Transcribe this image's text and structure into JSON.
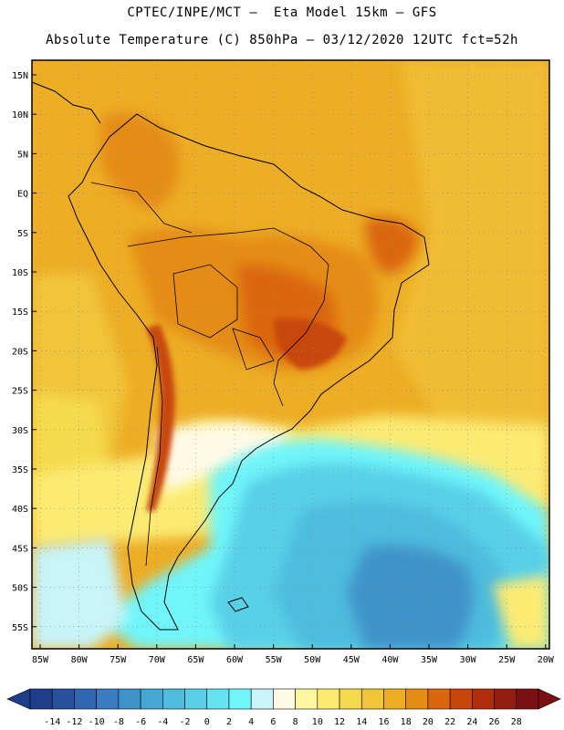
{
  "header": {
    "line1": "CPTEC/INPE/MCT –  Eta Model 15km – GFS",
    "line2": "Absolute Temperature (C) 850hPa – 03/12/2020 12UTC fct=52h"
  },
  "map": {
    "lat_ticks": [
      "15N",
      "10N",
      "5N",
      "EQ",
      "5S",
      "10S",
      "15S",
      "20S",
      "25S",
      "30S",
      "35S",
      "40S",
      "45S",
      "50S",
      "55S"
    ],
    "lon_ticks": [
      "85W",
      "80W",
      "75W",
      "70W",
      "65W",
      "60W",
      "55W",
      "50W",
      "45W",
      "40W",
      "35W",
      "30W",
      "25W",
      "20W"
    ]
  },
  "colorbar": {
    "labels": [
      "-14",
      "-12",
      "-10",
      "-8",
      "-6",
      "-4",
      "-2",
      "0",
      "2",
      "4",
      "6",
      "8",
      "10",
      "12",
      "14",
      "16",
      "18",
      "20",
      "22",
      "24",
      "26",
      "28"
    ],
    "colors": [
      "#1e3d8a",
      "#27519d",
      "#2f66b0",
      "#3a7cc0",
      "#3f93c9",
      "#44a8d2",
      "#4dbcdd",
      "#59d0e8",
      "#66e2f0",
      "#70f5fa",
      "#c8f4fa",
      "#fffae6",
      "#fff7a0",
      "#fbeb73",
      "#f6da4e",
      "#f1c53a",
      "#edad25",
      "#e58c14",
      "#da660e",
      "#c8460a",
      "#b02e0a",
      "#931d10",
      "#7a1012"
    ]
  }
}
